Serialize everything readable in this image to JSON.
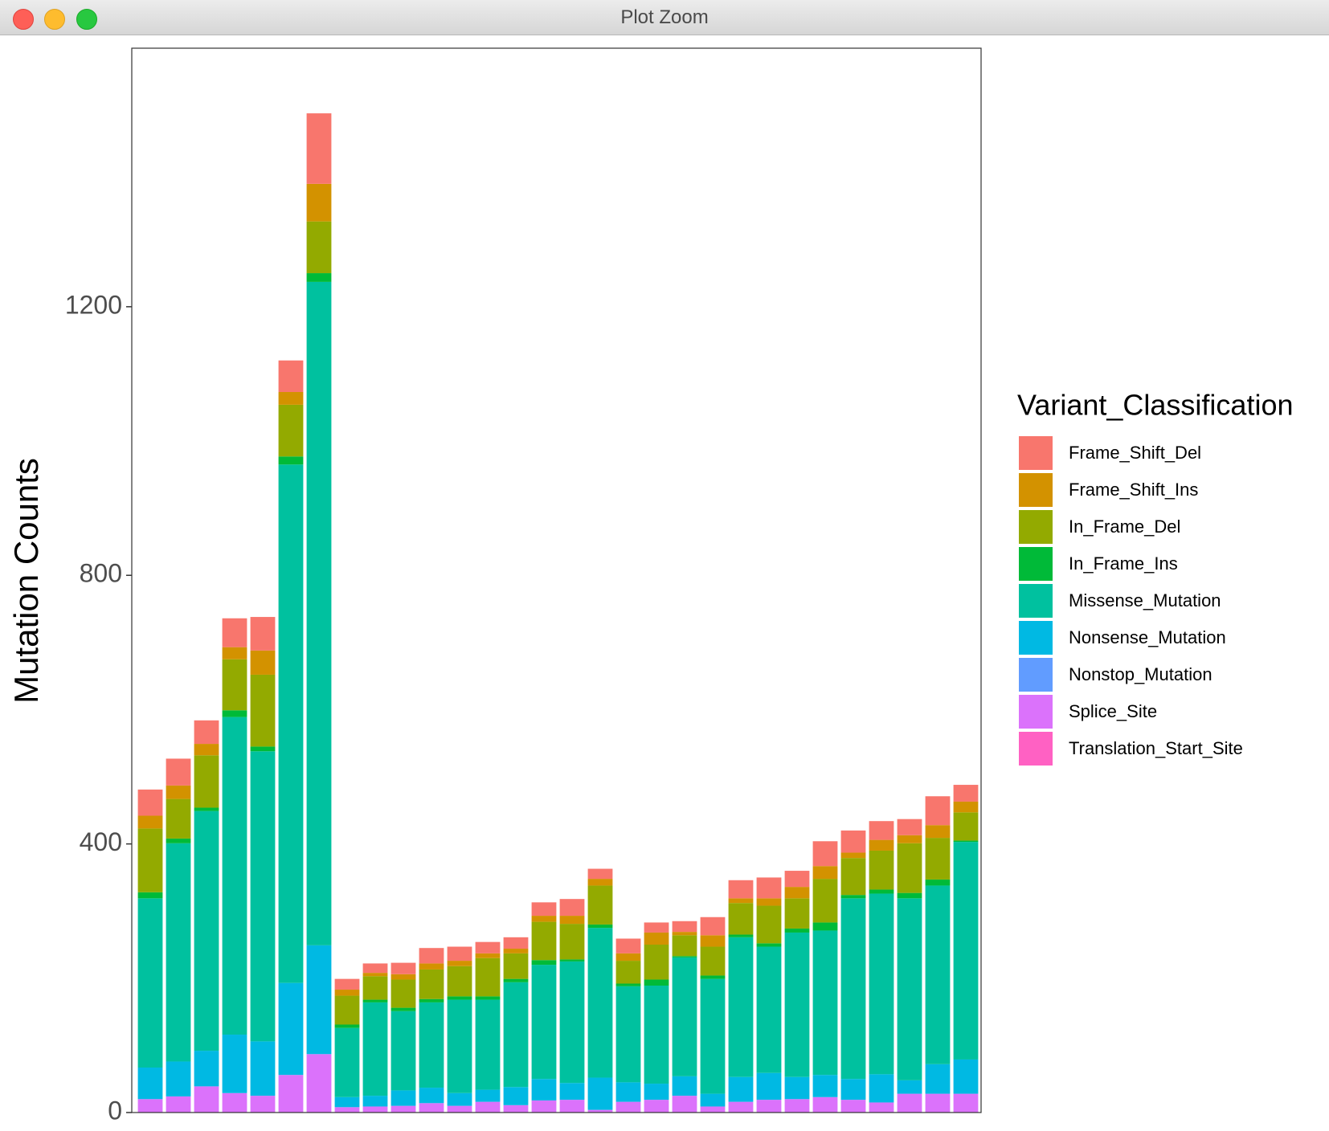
{
  "window": {
    "title": "Plot Zoom"
  },
  "chart_data": {
    "type": "stacked-bar",
    "y_label": "Mutation Counts",
    "legend_title": "Variant_Classification",
    "legend": "right",
    "grid": false,
    "categories": [
      null,
      null,
      null,
      null,
      null,
      null,
      null,
      null,
      null,
      null,
      null,
      null,
      null,
      null,
      null,
      null,
      null,
      null,
      null,
      null,
      null,
      null,
      null,
      null,
      null,
      null,
      null,
      null,
      null,
      null
    ],
    "ylim": [
      0,
      1585
    ],
    "yticks": [
      0,
      400,
      800,
      1200
    ],
    "series": [
      {
        "name": "Frame_Shift_Del",
        "color": "#F8766D",
        "values": [
          39,
          40,
          35,
          43,
          50,
          47,
          105,
          16,
          14,
          17,
          23,
          21,
          17,
          17,
          20,
          25,
          15,
          22,
          15,
          16,
          27,
          27,
          31,
          24,
          37,
          33,
          28,
          24,
          43,
          25
        ]
      },
      {
        "name": "Frame_Shift_Ins",
        "color": "#D39200",
        "values": [
          19,
          20,
          17,
          18,
          36,
          19,
          56,
          9,
          5,
          8,
          9,
          8,
          7,
          7,
          9,
          12,
          10,
          11,
          18,
          5,
          17,
          7,
          11,
          17,
          19,
          8,
          16,
          12,
          19,
          16
        ]
      },
      {
        "name": "In_Frame_Del",
        "color": "#93AA00",
        "values": [
          95,
          59,
          78,
          76,
          107,
          77,
          77,
          43,
          35,
          42,
          44,
          45,
          57,
          38,
          57,
          53,
          58,
          34,
          52,
          31,
          43,
          47,
          56,
          45,
          65,
          55,
          58,
          74,
          62,
          42
        ]
      },
      {
        "name": "In_Frame_Ins",
        "color": "#00BA38",
        "values": [
          9,
          7,
          5,
          10,
          7,
          12,
          13,
          5,
          4,
          5,
          5,
          5,
          5,
          5,
          7,
          3,
          5,
          4,
          9,
          2,
          5,
          4,
          5,
          6,
          12,
          5,
          6,
          8,
          9,
          2
        ]
      },
      {
        "name": "Missense_Mutation",
        "color": "#00C19F",
        "values": [
          252,
          325,
          357,
          473,
          432,
          772,
          988,
          103,
          139,
          118,
          127,
          139,
          134,
          156,
          170,
          181,
          223,
          143,
          146,
          177,
          171,
          208,
          188,
          215,
          215,
          269,
          269,
          271,
          266,
          324
        ]
      },
      {
        "name": "Nonsense_Mutation",
        "color": "#00B9E3",
        "values": [
          47,
          52,
          53,
          87,
          81,
          137,
          162,
          15,
          16,
          23,
          23,
          19,
          18,
          27,
          32,
          25,
          48,
          29,
          24,
          29,
          19,
          37,
          40,
          33,
          33,
          31,
          42,
          20,
          44,
          51
        ]
      },
      {
        "name": "Nonstop_Mutation",
        "color": "#619CFF",
        "values": [
          0,
          0,
          0,
          0,
          0,
          0,
          0,
          0,
          0,
          0,
          0,
          0,
          0,
          0,
          0,
          0,
          0,
          0,
          0,
          0,
          0,
          0,
          0,
          0,
          0,
          0,
          0,
          0,
          0,
          0
        ]
      },
      {
        "name": "Splice_Site",
        "color": "#DB72FB",
        "values": [
          20,
          24,
          39,
          29,
          25,
          56,
          87,
          8,
          9,
          10,
          14,
          10,
          16,
          11,
          18,
          19,
          4,
          16,
          19,
          25,
          9,
          16,
          19,
          20,
          23,
          19,
          15,
          28,
          28,
          28
        ]
      },
      {
        "name": "Translation_Start_Site",
        "color": "#FF61C3",
        "values": [
          0,
          0,
          0,
          0,
          0,
          0,
          0,
          0,
          0,
          0,
          0,
          0,
          0,
          0,
          0,
          0,
          0,
          0,
          0,
          0,
          0,
          0,
          0,
          0,
          0,
          0,
          0,
          0,
          0,
          0
        ]
      }
    ]
  }
}
